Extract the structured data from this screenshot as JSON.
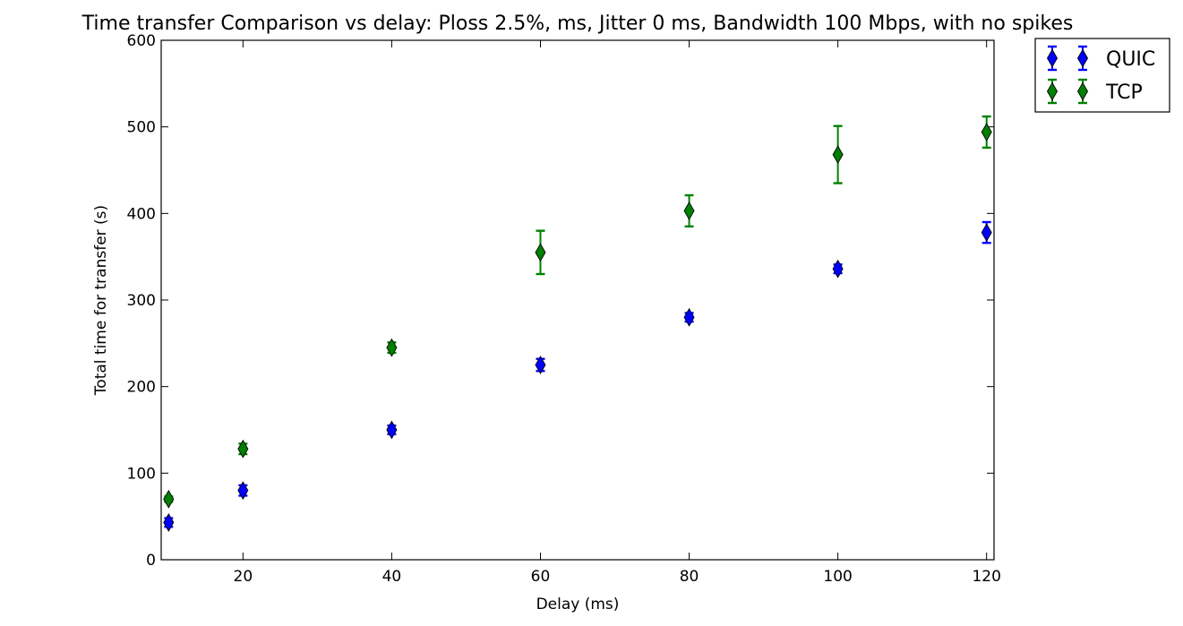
{
  "chart_data": {
    "type": "scatter",
    "title": "Time transfer Comparison vs delay: Ploss 2.5%, ms, Jitter 0 ms, Bandwidth 100 Mbps, with no spikes",
    "xlabel": "Delay (ms)",
    "ylabel": "Total time for transfer (s)",
    "xlim": [
      9,
      121
    ],
    "ylim": [
      0,
      600
    ],
    "xticks": [
      20,
      40,
      60,
      80,
      100,
      120
    ],
    "yticks": [
      0,
      100,
      200,
      300,
      400,
      500,
      600
    ],
    "grid": false,
    "legend": "outside-top-right",
    "marker": "thin_diamond",
    "series": [
      {
        "name": "QUIC",
        "color": "#0000ff",
        "x": [
          10,
          20,
          40,
          60,
          80,
          100,
          120
        ],
        "y": [
          43,
          80,
          150,
          225,
          280,
          336,
          378
        ],
        "yerr": [
          5,
          6,
          5,
          7,
          5,
          5,
          12
        ]
      },
      {
        "name": "TCP",
        "color": "#008000",
        "x": [
          10,
          20,
          40,
          60,
          80,
          100,
          120
        ],
        "y": [
          70,
          128,
          245,
          355,
          403,
          468,
          494
        ],
        "yerr": [
          3,
          6,
          6,
          25,
          18,
          33,
          18
        ]
      }
    ]
  }
}
